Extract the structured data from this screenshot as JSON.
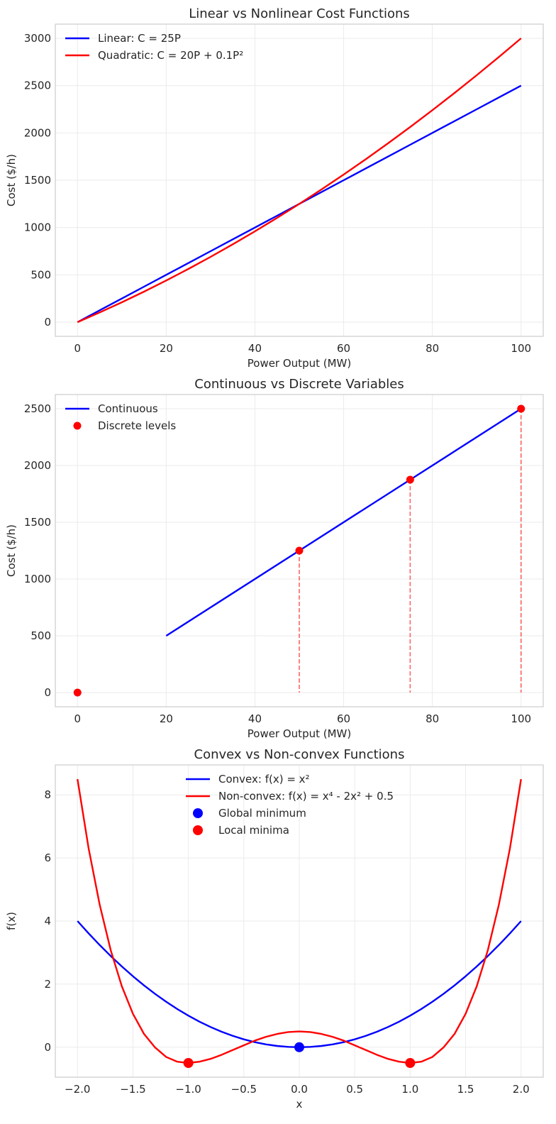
{
  "chart_data": [
    {
      "type": "line",
      "title": "Linear vs Nonlinear Cost Functions",
      "xlabel": "Power Output (MW)",
      "ylabel": "Cost ($/h)",
      "xlim": [
        -5,
        105
      ],
      "ylim": [
        -150,
        3150
      ],
      "xticks": [
        0,
        20,
        40,
        60,
        80,
        100
      ],
      "xtick_labels": [
        "0",
        "20",
        "40",
        "60",
        "80",
        "100"
      ],
      "yticks": [
        0,
        500,
        1000,
        1500,
        2000,
        2500,
        3000
      ],
      "ytick_labels": [
        "0",
        "500",
        "1000",
        "1500",
        "2000",
        "2500",
        "3000"
      ],
      "grid": true,
      "legend_position": "upper-left",
      "series": [
        {
          "name": "Linear: C = 25P",
          "kind": "line",
          "color": "#0000ff",
          "x": [
            0,
            5,
            10,
            15,
            20,
            25,
            30,
            35,
            40,
            45,
            50,
            55,
            60,
            65,
            70,
            75,
            80,
            85,
            90,
            95,
            100
          ],
          "y": [
            0,
            125,
            250,
            375,
            500,
            625,
            750,
            875,
            1000,
            1125,
            1250,
            1375,
            1500,
            1625,
            1750,
            1875,
            2000,
            2125,
            2250,
            2375,
            2500
          ]
        },
        {
          "name": "Quadratic: C = 20P + 0.1P²",
          "kind": "line",
          "color": "#ff0000",
          "x": [
            0,
            5,
            10,
            15,
            20,
            25,
            30,
            35,
            40,
            45,
            50,
            55,
            60,
            65,
            70,
            75,
            80,
            85,
            90,
            95,
            100
          ],
          "y": [
            0,
            102.5,
            210,
            322.5,
            440,
            562.5,
            690,
            822.5,
            960,
            1102.5,
            1250,
            1402.5,
            1560,
            1722.5,
            1890,
            2062.5,
            2240,
            2422.5,
            2610,
            2802.5,
            3000
          ]
        }
      ]
    },
    {
      "type": "line",
      "title": "Continuous vs Discrete Variables",
      "xlabel": "Power Output (MW)",
      "ylabel": "Cost ($/h)",
      "xlim": [
        -5,
        105
      ],
      "ylim": [
        -125,
        2625
      ],
      "xticks": [
        0,
        20,
        40,
        60,
        80,
        100
      ],
      "xtick_labels": [
        "0",
        "20",
        "40",
        "60",
        "80",
        "100"
      ],
      "yticks": [
        0,
        500,
        1000,
        1500,
        2000,
        2500
      ],
      "ytick_labels": [
        "0",
        "500",
        "1000",
        "1500",
        "2000",
        "2500"
      ],
      "grid": true,
      "legend_position": "upper-left",
      "series": [
        {
          "name": "Continuous",
          "kind": "line",
          "color": "#0000ff",
          "x": [
            20,
            100
          ],
          "y": [
            500,
            2500
          ]
        },
        {
          "name": "Discrete levels",
          "kind": "points",
          "color": "#ff0000",
          "x": [
            0,
            50,
            75,
            100
          ],
          "y": [
            0,
            1250,
            1875,
            2500
          ]
        }
      ],
      "dropline_color": "#ff0000"
    },
    {
      "type": "line",
      "title": "Convex vs Non-convex Functions",
      "xlabel": "x",
      "ylabel": "f(x)",
      "xlim": [
        -2.2,
        2.2
      ],
      "ylim": [
        -0.95,
        8.95
      ],
      "xticks": [
        -2,
        -1.5,
        -1,
        -0.5,
        0,
        0.5,
        1,
        1.5,
        2
      ],
      "xtick_labels": [
        "−2.0",
        "−1.5",
        "−1.0",
        "−0.5",
        "0.0",
        "0.5",
        "1.0",
        "1.5",
        "2.0"
      ],
      "yticks": [
        0,
        2,
        4,
        6,
        8
      ],
      "ytick_labels": [
        "0",
        "2",
        "4",
        "6",
        "8"
      ],
      "grid": true,
      "legend_position": "upper-center",
      "series": [
        {
          "name": "Convex: f(x) = x²",
          "kind": "line",
          "color": "#0000ff",
          "x": [
            -2,
            -1.9,
            -1.8,
            -1.7,
            -1.6,
            -1.5,
            -1.4,
            -1.3,
            -1.2,
            -1.1,
            -1,
            -0.9,
            -0.8,
            -0.7,
            -0.6,
            -0.5,
            -0.4,
            -0.3,
            -0.2,
            -0.1,
            0,
            0.1,
            0.2,
            0.3,
            0.4,
            0.5,
            0.6,
            0.7,
            0.8,
            0.9,
            1,
            1.1,
            1.2,
            1.3,
            1.4,
            1.5,
            1.6,
            1.7,
            1.8,
            1.9,
            2
          ],
          "y": [
            4,
            3.61,
            3.24,
            2.89,
            2.56,
            2.25,
            1.96,
            1.69,
            1.44,
            1.21,
            1,
            0.81,
            0.64,
            0.49,
            0.36,
            0.25,
            0.16,
            0.09,
            0.04,
            0.01,
            0,
            0.01,
            0.04,
            0.09,
            0.16,
            0.25,
            0.36,
            0.49,
            0.64,
            0.81,
            1,
            1.21,
            1.44,
            1.69,
            1.96,
            2.25,
            2.56,
            2.89,
            3.24,
            3.61,
            4
          ]
        },
        {
          "name": "Non-convex: f(x) = x⁴ - 2x² + 0.5",
          "kind": "line",
          "color": "#ff0000",
          "x": [
            -2,
            -1.9,
            -1.8,
            -1.7,
            -1.6,
            -1.5,
            -1.4,
            -1.3,
            -1.2,
            -1.1,
            -1,
            -0.9,
            -0.8,
            -0.7,
            -0.6,
            -0.5,
            -0.4,
            -0.3,
            -0.2,
            -0.1,
            0,
            0.1,
            0.2,
            0.3,
            0.4,
            0.5,
            0.6,
            0.7,
            0.8,
            0.9,
            1,
            1.1,
            1.2,
            1.3,
            1.4,
            1.5,
            1.6,
            1.7,
            1.8,
            1.9,
            2
          ],
          "y": [
            8.5,
            6.31,
            4.52,
            3.07,
            1.93,
            1.06,
            0.42,
            -0.01,
            -0.31,
            -0.46,
            -0.5,
            -0.46,
            -0.37,
            -0.24,
            -0.09,
            0.06,
            0.21,
            0.33,
            0.42,
            0.48,
            0.5,
            0.48,
            0.42,
            0.33,
            0.21,
            0.06,
            -0.09,
            -0.24,
            -0.37,
            -0.46,
            -0.5,
            -0.46,
            -0.31,
            -0.01,
            0.42,
            1.06,
            1.93,
            3.07,
            4.52,
            6.31,
            8.5
          ]
        },
        {
          "name": "Global minimum",
          "kind": "points",
          "color": "#0000ff",
          "x": [
            0
          ],
          "y": [
            0
          ]
        },
        {
          "name": "Local minima",
          "kind": "points",
          "color": "#ff0000",
          "x": [
            -1,
            1
          ],
          "y": [
            -0.5,
            -0.5
          ]
        }
      ]
    }
  ]
}
